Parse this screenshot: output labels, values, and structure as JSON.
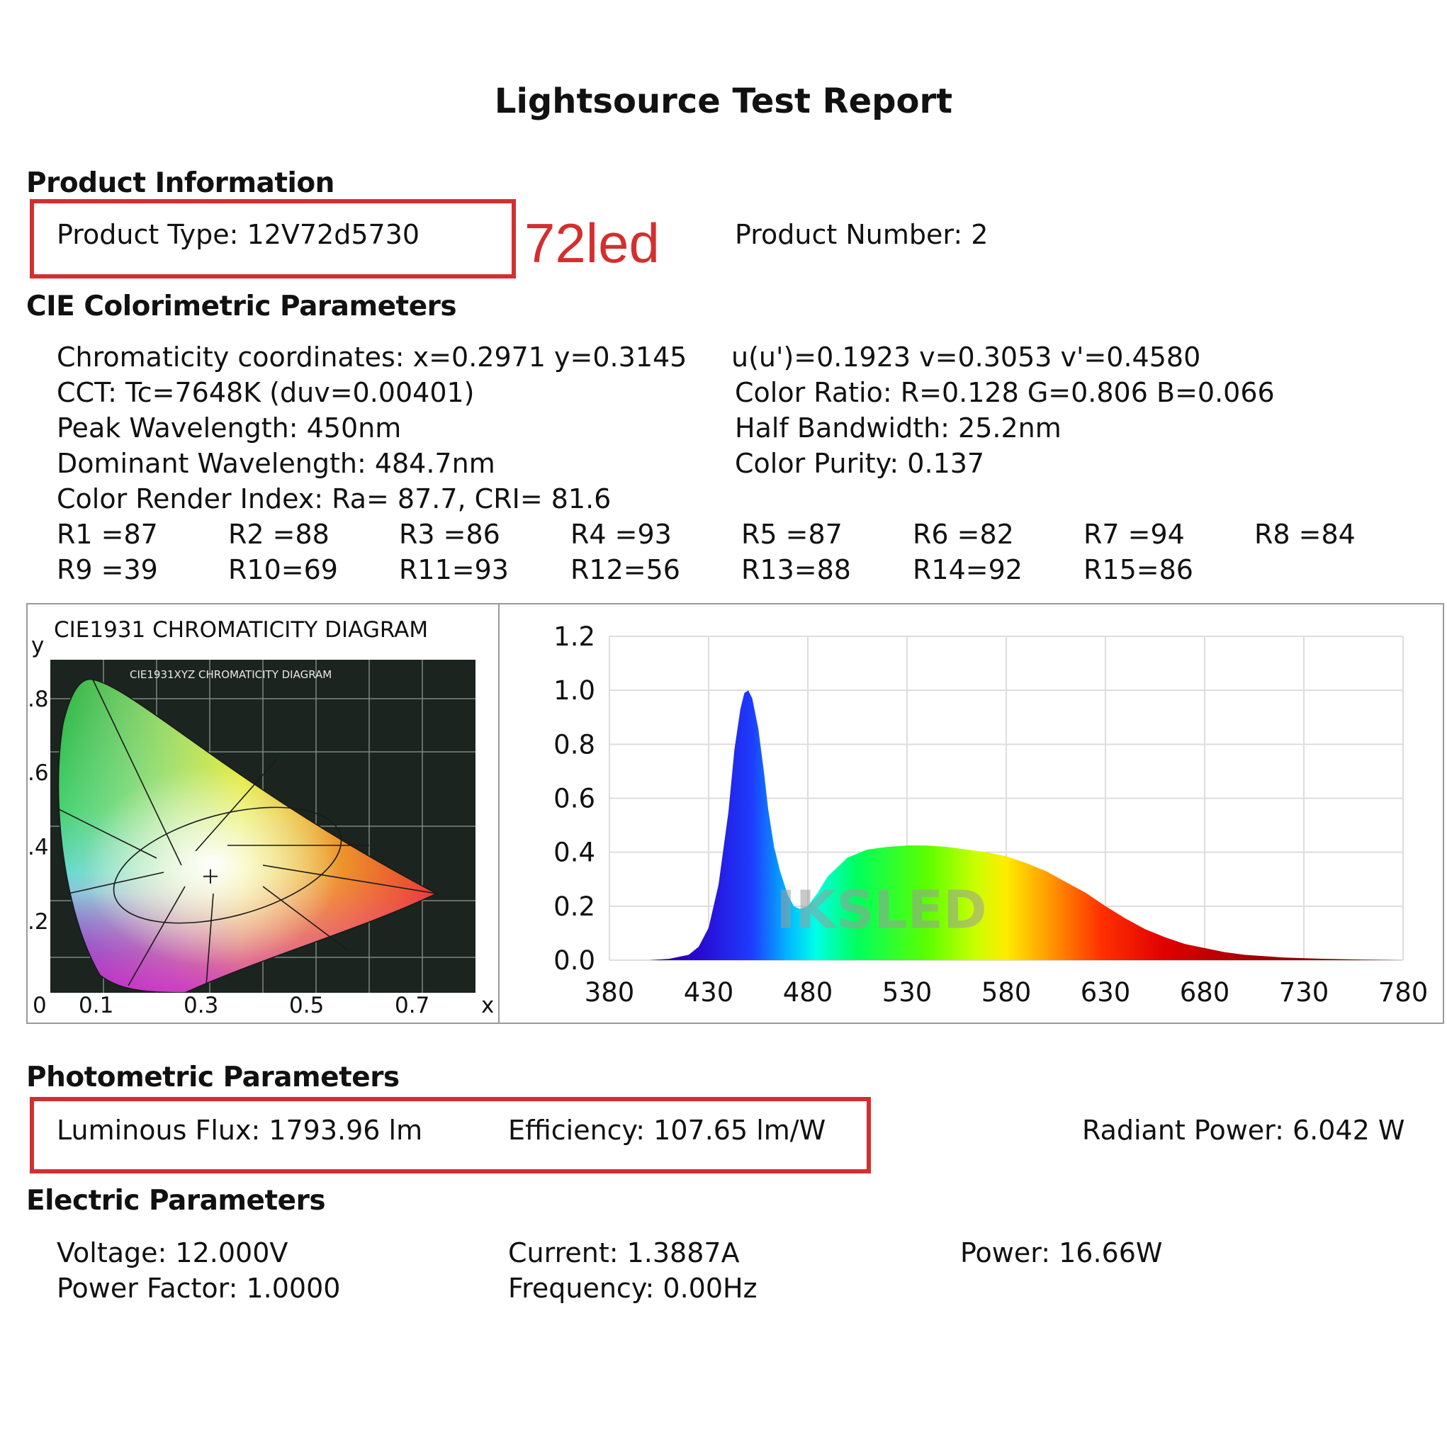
{
  "report": {
    "title": "Lightsource Test Report"
  },
  "product": {
    "heading": "Product Information",
    "type": "Product Type: 12V72d5730",
    "note": "72led",
    "number": "Product Number: 2"
  },
  "cie": {
    "heading": "CIE Colorimetric Parameters",
    "left": [
      "Chromaticity coordinates: x=0.2971 y=0.3145",
      "CCT: Tc=7648K (duv=0.00401)",
      "Peak Wavelength: 450nm",
      "Dominant Wavelength: 484.7nm",
      "Color Render Index: Ra= 87.7, CRI= 81.6"
    ],
    "right": [
      "u(u')=0.1923 v=0.3053 v'=0.4580",
      "Color Ratio: R=0.128  G=0.806  B=0.066",
      "Half Bandwidth: 25.2nm",
      "Color Purity: 0.137"
    ],
    "r_values_row1": [
      "R1 =87",
      "R2 =88",
      "R3 =86",
      "R4 =93",
      "R5 =87",
      "R6 =82",
      "R7 =94",
      "R8 =84"
    ],
    "r_values_row2": [
      "R9 =39",
      "R10=69",
      "R11=93",
      "R12=56",
      "R13=88",
      "R14=92",
      "R15=86"
    ]
  },
  "cie_diagram": {
    "title": "CIE1931 CHROMATICITY DIAGRAM",
    "inner_title": "CIE1931XYZ CHROMATICITY DIAGRAM",
    "y_axis_label": "y",
    "x_axis_label": "x",
    "y_ticks": [
      ".8",
      ".6",
      ".4",
      ".2"
    ],
    "x_ticks": [
      "0",
      "0.1",
      "0.3",
      "0.5",
      "0.7"
    ],
    "measured_point": {
      "x": 0.2971,
      "y": 0.3145
    }
  },
  "chart_data": {
    "type": "area",
    "title": "",
    "xlabel": "",
    "ylabel": "",
    "xlim": [
      380,
      780
    ],
    "ylim": [
      0,
      1.2
    ],
    "x_ticks": [
      "380",
      "430",
      "480",
      "530",
      "580",
      "630",
      "680",
      "730",
      "780"
    ],
    "y_ticks": [
      "0.0",
      "0.2",
      "0.4",
      "0.6",
      "0.8",
      "1.0",
      "1.2"
    ],
    "grid": true,
    "fill": "wavelength-colored spectrum",
    "watermark": "IKSLED",
    "series": [
      {
        "x": [
          380,
          400,
          410,
          420,
          425,
          430,
          435,
          440,
          443,
          446,
          448,
          450,
          452,
          455,
          458,
          460,
          463,
          466,
          470,
          473,
          476,
          480,
          485,
          490,
          500,
          510,
          520,
          530,
          540,
          550,
          560,
          570,
          580,
          590,
          600,
          610,
          620,
          630,
          640,
          650,
          660,
          670,
          680,
          690,
          700,
          720,
          740,
          760,
          780
        ],
        "values": [
          0.0,
          0.0,
          0.005,
          0.02,
          0.05,
          0.12,
          0.28,
          0.55,
          0.78,
          0.93,
          0.99,
          1.0,
          0.97,
          0.86,
          0.69,
          0.56,
          0.42,
          0.33,
          0.24,
          0.2,
          0.19,
          0.2,
          0.25,
          0.31,
          0.38,
          0.41,
          0.42,
          0.425,
          0.425,
          0.42,
          0.41,
          0.4,
          0.385,
          0.36,
          0.33,
          0.29,
          0.25,
          0.2,
          0.155,
          0.115,
          0.085,
          0.06,
          0.045,
          0.03,
          0.02,
          0.01,
          0.005,
          0.002,
          0.0
        ]
      }
    ]
  },
  "photometric": {
    "heading": "Photometric Parameters",
    "flux": "Luminous Flux: 1793.96 lm",
    "efficiency": "Efficiency: 107.65 lm/W",
    "radiant": "Radiant Power: 6.042 W"
  },
  "electric": {
    "heading": "Electric Parameters",
    "voltage": "Voltage: 12.000V",
    "current": "Current: 1.3887A",
    "power": "Power: 16.66W",
    "power_factor": "Power Factor: 1.0000",
    "frequency": "Frequency: 0.00Hz"
  },
  "colors": {
    "highlight": "#d32f2f",
    "grid": "#dddddd",
    "panel_border": "#9a9a9a"
  }
}
